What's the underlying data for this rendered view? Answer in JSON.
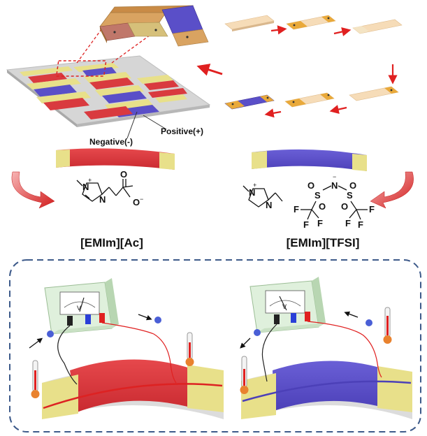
{
  "labels": {
    "positive": "Positive(+)",
    "negative": "Negative(-)",
    "ionic_liquid_left": "[EMIm][Ac]",
    "ionic_liquid_right": "[EMIm][TFSI]"
  },
  "structure_left": {
    "atoms": [
      "N",
      "N",
      "O",
      "O"
    ],
    "charges": [
      "+",
      "−"
    ]
  },
  "structure_right": {
    "atoms": [
      "N",
      "N",
      "S",
      "N",
      "S",
      "F",
      "F",
      "F",
      "F",
      "F",
      "F",
      "O",
      "O",
      "O",
      "O"
    ],
    "charges": [
      "+",
      "−"
    ]
  },
  "meter": {
    "needle_symbol": "V"
  },
  "colors": {
    "red_strip": "#d93a3f",
    "blue_strip": "#5a4fc8",
    "gold_electrode": "#e8e08a",
    "orange_electrode": "#e9a93a",
    "cream_strip": "#f6dcb8",
    "arrow_red": "#e02020",
    "dash_blue": "#3d5a8a",
    "device_green": "#dff0dc"
  },
  "icons": [
    "curved-arrow-icon",
    "thermometer-icon",
    "electron-icon",
    "voltmeter-icon"
  ]
}
